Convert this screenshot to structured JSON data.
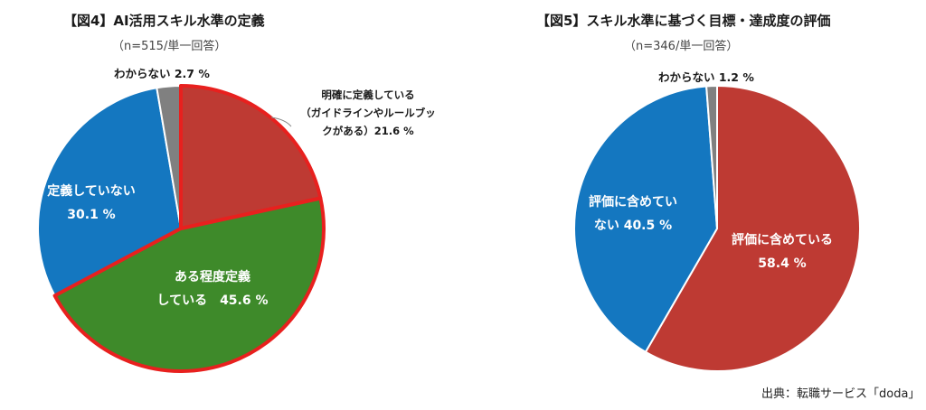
{
  "chart_data": [
    {
      "type": "pie",
      "title": "【図4】AI活用スキル水準の定義",
      "subtitle": "（n=515/単一回答）",
      "categories": [
        "明確に定義している（ガイドラインやルールブックがある）",
        "ある程度定義している",
        "定義していない",
        "わからない"
      ],
      "values": [
        21.6,
        45.6,
        30.1,
        2.7
      ],
      "unit": "%",
      "colors": [
        "#BE3A33",
        "#3E8A2A",
        "#1477C0",
        "#808080"
      ],
      "highlight_border": "#E8201E",
      "start_angle": "12 o'clock, clockwise"
    },
    {
      "type": "pie",
      "title": "【図5】スキル水準に基づく目標・達成度の評価",
      "subtitle": "（n=346/単一回答）",
      "categories": [
        "評価に含めている",
        "評価に含めていない",
        "わからない"
      ],
      "values": [
        58.4,
        40.5,
        1.2
      ],
      "unit": "%",
      "colors": [
        "#BE3A33",
        "#1477C0",
        "#808080"
      ],
      "start_angle": "12 o'clock, clockwise"
    }
  ],
  "fig4": {
    "title": "【図4】AI活用スキル水準の定義",
    "subtitle": "（n=515/単一回答）",
    "labels": {
      "unknown": "わからない 2.7 %",
      "clear_line1": "明確に定義している",
      "clear_line2": "（ガイドラインやルールブッ",
      "clear_line3": "クがある）21.6 %",
      "not_line1": "定義していない",
      "not_line2": "30.1 %",
      "some_line1": "ある程度定義",
      "some_line2": "している　45.6 %"
    }
  },
  "fig5": {
    "title": "【図5】スキル水準に基づく目標・達成度の評価",
    "subtitle": "（n=346/単一回答）",
    "labels": {
      "unknown": "わからない 1.2 %",
      "not_line1": "評価に含めてい",
      "not_line2": "ない 40.5 %",
      "yes_line1": "評価に含めている",
      "yes_line2": "58.4 %"
    }
  },
  "source": "出典：転職サービス「doda」"
}
